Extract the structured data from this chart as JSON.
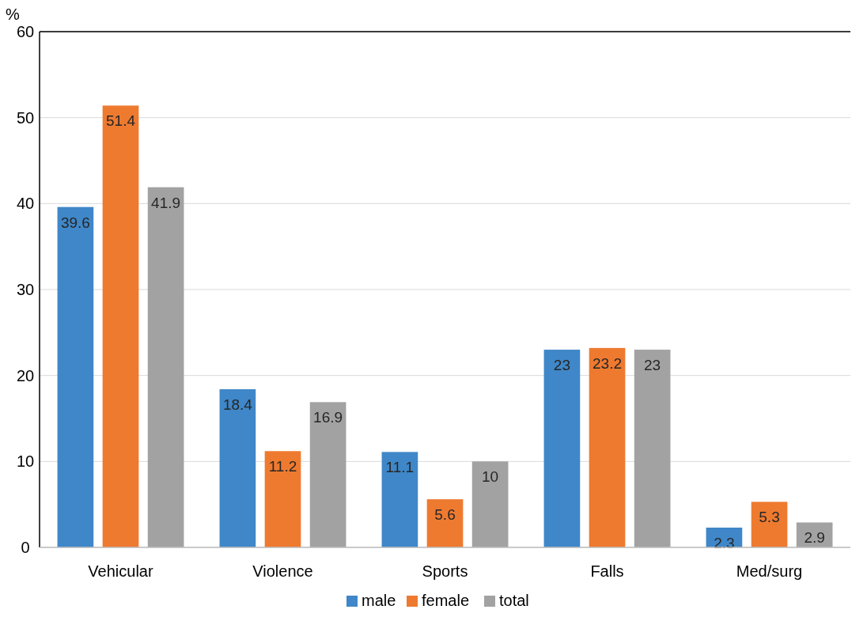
{
  "chart_data": {
    "type": "bar",
    "ylabel": "%",
    "categories": [
      "Vehicular",
      "Violence",
      "Sports",
      "Falls",
      "Med/surg"
    ],
    "series": [
      {
        "name": "male",
        "color": "#3f87c8",
        "values": [
          39.6,
          18.4,
          11.1,
          23,
          2.3
        ]
      },
      {
        "name": "female",
        "color": "#ee7a30",
        "values": [
          51.4,
          11.2,
          5.6,
          23.2,
          5.3
        ]
      },
      {
        "name": "total",
        "color": "#a2a2a2",
        "values": [
          41.9,
          16.9,
          10,
          23,
          2.9
        ]
      }
    ],
    "ylim": [
      0,
      60
    ],
    "yticks": [
      0,
      10,
      20,
      30,
      40,
      50,
      60
    ],
    "grid": "y",
    "legend": "bottom",
    "data_labels": true
  }
}
